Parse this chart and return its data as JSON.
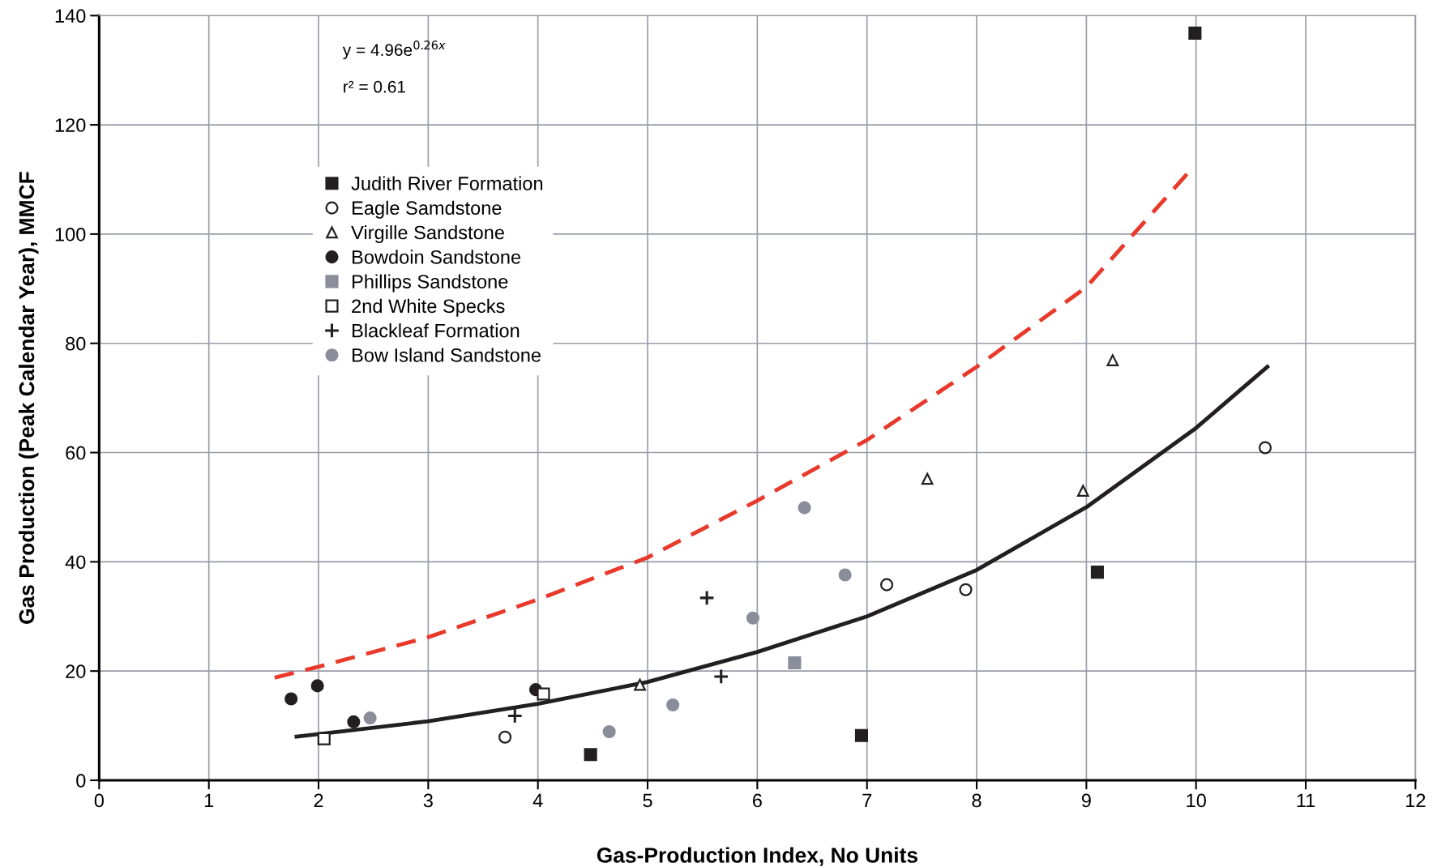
{
  "chart_data": {
    "type": "scatter",
    "xlabel": "Gas-Production Index, No Units",
    "ylabel": "Gas Production (Peak Calendar Year), MMCF",
    "xlim": [
      0,
      12
    ],
    "xticks": [
      0,
      1,
      2,
      3,
      4,
      5,
      6,
      7,
      8,
      9,
      10,
      11,
      12
    ],
    "ylim": [
      0,
      140
    ],
    "yticks": [
      0,
      20,
      40,
      60,
      80,
      100,
      120,
      140
    ],
    "grid": true,
    "legend": "top left",
    "annotations": [
      "y = 4.96e$^{0.26x}$",
      "r² = 0.61"
    ],
    "series": [
      {
        "name": "Judith River Formation",
        "color": "#231f20",
        "marker": "square",
        "x": [
          9.99,
          9.1,
          6.95,
          4.48
        ],
        "values": [
          136.8,
          38.1,
          8.2,
          4.7
        ]
      },
      {
        "name": "Eagle Samdstone",
        "color": "#231f20",
        "marker": "circle-open",
        "x": [
          3.7,
          7.18,
          7.9,
          10.63
        ],
        "values": [
          7.9,
          35.8,
          34.9,
          60.9
        ]
      },
      {
        "name": "Virgille Sandstone",
        "color": "#231f20",
        "marker": "triangle-open",
        "x": [
          4.93,
          7.55,
          8.97,
          9.24
        ],
        "values": [
          17.5,
          55.2,
          53.0,
          76.9
        ]
      },
      {
        "name": "Bowdoin Sandstone",
        "color": "#231f20",
        "marker": "circle",
        "x": [
          1.75,
          1.99,
          2.32,
          3.98
        ],
        "values": [
          14.9,
          17.3,
          10.7,
          16.6
        ]
      },
      {
        "name": "Phillips Sandstone",
        "color": "#8a8d9a",
        "marker": "square",
        "x": [
          6.34
        ],
        "values": [
          21.5
        ]
      },
      {
        "name": "2nd White Specks",
        "color": "#231f20",
        "marker": "square-open",
        "x": [
          2.05,
          4.05
        ],
        "values": [
          7.6,
          15.8
        ]
      },
      {
        "name": "Blackleaf Formation",
        "color": "#231f20",
        "marker": "cross",
        "x": [
          3.79,
          5.54,
          5.67
        ],
        "values": [
          11.8,
          33.4,
          19.0
        ]
      },
      {
        "name": "Bow Island Sandstone",
        "color": "#8a8d9a",
        "marker": "circle",
        "x": [
          2.47,
          4.65,
          5.23,
          5.96,
          6.43,
          6.8
        ],
        "values": [
          11.4,
          8.9,
          13.8,
          29.7,
          49.9,
          37.6
        ]
      },
      {
        "type": "line",
        "color": "#231f20",
        "line_style": "solid",
        "x": [
          1.8,
          3,
          4,
          5,
          6,
          7,
          8,
          9,
          10,
          10.65
        ],
        "values": [
          8.0,
          10.8,
          14.0,
          18.0,
          23.5,
          30.0,
          38.5,
          50.0,
          64.5,
          75.7
        ]
      },
      {
        "type": "line",
        "color": "#e8392a",
        "line_style": "dashed",
        "x": [
          1.6,
          2,
          3,
          4,
          5,
          6,
          7,
          8,
          9,
          9.94
        ],
        "values": [
          18.8,
          20.8,
          26.2,
          33.1,
          40.8,
          51.2,
          62.3,
          75.7,
          90.3,
          111.5
        ]
      }
    ]
  }
}
